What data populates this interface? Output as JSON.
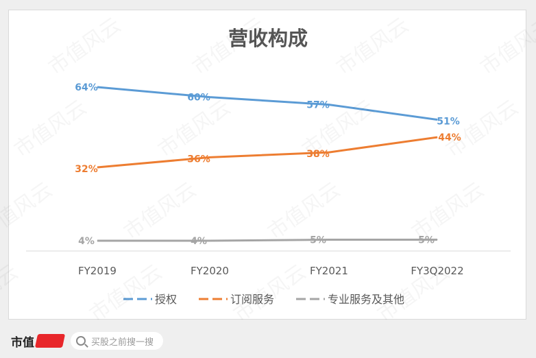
{
  "chart_data": {
    "type": "line",
    "title": "营收构成",
    "categories": [
      "FY2019",
      "FY2020",
      "FY2021",
      "FY3Q2022"
    ],
    "series": [
      {
        "name": "授权",
        "values": [
          64,
          60,
          57,
          51
        ],
        "labels": [
          "64%",
          "60%",
          "57%",
          "51%"
        ],
        "color": "#5b9bd5"
      },
      {
        "name": "订阅服务",
        "values": [
          32,
          36,
          38,
          44
        ],
        "labels": [
          "32%",
          "36%",
          "38%",
          "44%"
        ],
        "color": "#ed7d31"
      },
      {
        "name": "专业服务及其他",
        "values": [
          4,
          4,
          5,
          5
        ],
        "labels": [
          "4%",
          "4%",
          "5%",
          "5%"
        ],
        "color": "#a5a5a5"
      }
    ],
    "ylim": [
      0,
      70
    ],
    "grid": false,
    "legend": "bottom"
  },
  "watermark": "市值风云",
  "footer": {
    "brand": "市值",
    "search_placeholder": "买股之前搜一搜"
  }
}
